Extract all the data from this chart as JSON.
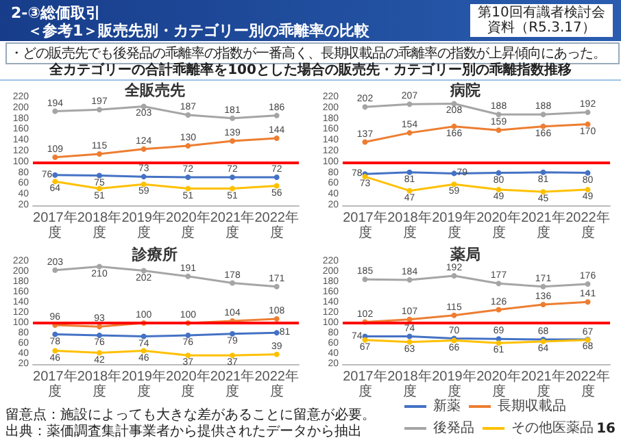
{
  "chart_data": [
    {
      "type": "line",
      "title": "全販売先",
      "categories": [
        "2017年度",
        "2018年度",
        "2019年度",
        "2020年度",
        "2021年度",
        "2022年度"
      ],
      "series": [
        {
          "color": "#4472c4",
          "values": [
            76,
            75,
            73,
            72,
            72,
            72
          ]
        },
        {
          "color": "#ed7d31",
          "values": [
            109,
            115,
            124,
            130,
            139,
            144
          ]
        },
        {
          "color": "#a5a5a5",
          "values": [
            194,
            197,
            203,
            187,
            181,
            186
          ]
        },
        {
          "color": "#ffc000",
          "values": [
            64,
            51,
            59,
            51,
            51,
            56
          ]
        }
      ],
      "ylim": [
        20,
        220
      ],
      "yticks": [
        20,
        40,
        60,
        80,
        100,
        120,
        140,
        160,
        180,
        200,
        220
      ],
      "marker": "circle",
      "data_labels": true,
      "ref_lines": [
        {
          "axis": "y",
          "value": 100,
          "color": "#ff0000"
        }
      ],
      "annotations": [
        "2-③総価取引",
        "＜参考1＞販売先別・カテゴリー別の乖離率の比較",
        "第10回有識者検討会",
        "資料（R5.3.17）",
        "・どの販売先でも後発品の乖離率の指数が一番高く、長期収載品の乖離率の指数が上昇傾向にあった。",
        "全カテゴリーの合計乖離率を100とした場合の販売先・カテゴリー別の乖離指数推移"
      ]
    },
    {
      "type": "line",
      "title": "病院",
      "categories": [
        "2017年度",
        "2018年度",
        "2019年度",
        "2020年度",
        "2021年度",
        "2022年度"
      ],
      "series": [
        {
          "color": "#4472c4",
          "values": [
            78,
            81,
            79,
            80,
            81,
            80
          ]
        },
        {
          "color": "#ed7d31",
          "values": [
            137,
            154,
            166,
            159,
            166,
            170
          ]
        },
        {
          "color": "#a5a5a5",
          "values": [
            202,
            207,
            208,
            188,
            188,
            192
          ]
        },
        {
          "color": "#ffc000",
          "values": [
            73,
            47,
            59,
            49,
            45,
            49
          ]
        }
      ],
      "ylim": [
        20,
        220
      ],
      "yticks": [
        20,
        40,
        60,
        80,
        100,
        120,
        140,
        160,
        180,
        200,
        220
      ],
      "marker": "circle",
      "data_labels": true,
      "ref_lines": [
        {
          "axis": "y",
          "value": 100,
          "color": "#ff0000"
        }
      ]
    },
    {
      "type": "line",
      "title": "診療所",
      "categories": [
        "2017年度",
        "2018年度",
        "2019年度",
        "2020年度",
        "2021年度",
        "2022年度"
      ],
      "series": [
        {
          "color": "#4472c4",
          "values": [
            78,
            76,
            74,
            76,
            79,
            81
          ]
        },
        {
          "color": "#ed7d31",
          "values": [
            96,
            93,
            100,
            100,
            104,
            108
          ]
        },
        {
          "color": "#a5a5a5",
          "values": [
            203,
            210,
            202,
            191,
            178,
            171
          ]
        },
        {
          "color": "#ffc000",
          "values": [
            46,
            42,
            46,
            37,
            37,
            39
          ]
        }
      ],
      "ylim": [
        20,
        220
      ],
      "yticks": [
        20,
        40,
        60,
        80,
        100,
        120,
        140,
        160,
        180,
        200,
        220
      ],
      "marker": "circle",
      "data_labels": true,
      "ref_lines": [
        {
          "axis": "y",
          "value": 100,
          "color": "#ff0000"
        }
      ]
    },
    {
      "type": "line",
      "title": "薬局",
      "categories": [
        "2017年度",
        "2018年度",
        "2019年度",
        "2020年度",
        "2021年度",
        "2022年度"
      ],
      "series": [
        {
          "name": "新薬",
          "color": "#4472c4",
          "values": [
            74,
            74,
            70,
            69,
            68,
            68
          ]
        },
        {
          "name": "長期収載品",
          "color": "#ed7d31",
          "values": [
            102,
            107,
            115,
            126,
            136,
            141
          ]
        },
        {
          "name": "後発品",
          "color": "#a5a5a5",
          "values": [
            185,
            184,
            192,
            177,
            171,
            176
          ]
        },
        {
          "name": "その他医薬品",
          "color": "#ffc000",
          "values": [
            67,
            63,
            66,
            61,
            64,
            67
          ]
        }
      ],
      "ylim": [
        20,
        220
      ],
      "yticks": [
        20,
        40,
        60,
        80,
        100,
        120,
        140,
        160,
        180,
        200,
        220
      ],
      "marker": "circle",
      "data_labels": true,
      "legend": "bottom right",
      "ref_lines": [
        {
          "axis": "y",
          "value": 100,
          "color": "#ff0000"
        }
      ],
      "annotations": [
        "留意点：施設によっても大きな差があることに留意が必要。",
        "出典：薬価調査集計事業者から提供されたデータから抽出",
        "16"
      ]
    }
  ]
}
